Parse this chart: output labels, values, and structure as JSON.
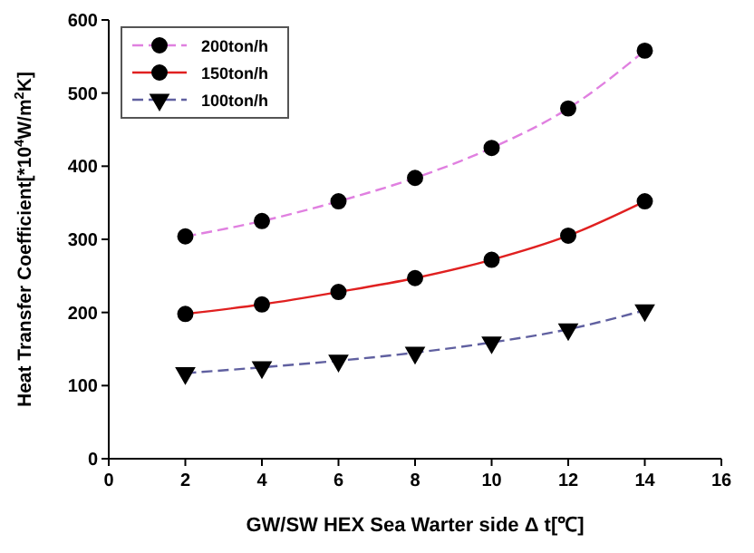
{
  "chart_data": {
    "type": "line",
    "xlabel": "GW/SW HEX Sea Warter side Δ t[℃]",
    "ylabel": "Heat Transfer Coefficient[*10$^{4}$W/m$^{2}$K]",
    "x": [
      2,
      4,
      6,
      8,
      10,
      12,
      14
    ],
    "series": [
      {
        "name": "200ton/h",
        "color": "#e080e0",
        "line_style": "dashed",
        "marker": "circle",
        "values": [
          304,
          325,
          352,
          384,
          425,
          479,
          558
        ]
      },
      {
        "name": "150ton/h",
        "color": "#e02020",
        "line_style": "solid",
        "marker": "circle",
        "values": [
          198,
          211,
          228,
          247,
          272,
          305,
          352
        ]
      },
      {
        "name": "100ton/h",
        "color": "#6060a0",
        "line_style": "dashed",
        "marker": "triangle",
        "values": [
          117,
          125,
          134,
          145,
          159,
          177,
          203
        ]
      }
    ],
    "xlim": [
      0,
      16
    ],
    "xticks": [
      0,
      2,
      4,
      6,
      8,
      10,
      12,
      14,
      16
    ],
    "ylim": [
      0,
      600
    ],
    "yticks": [
      0,
      100,
      200,
      300,
      400,
      500,
      600
    ],
    "grid": false,
    "legend": "top left"
  }
}
